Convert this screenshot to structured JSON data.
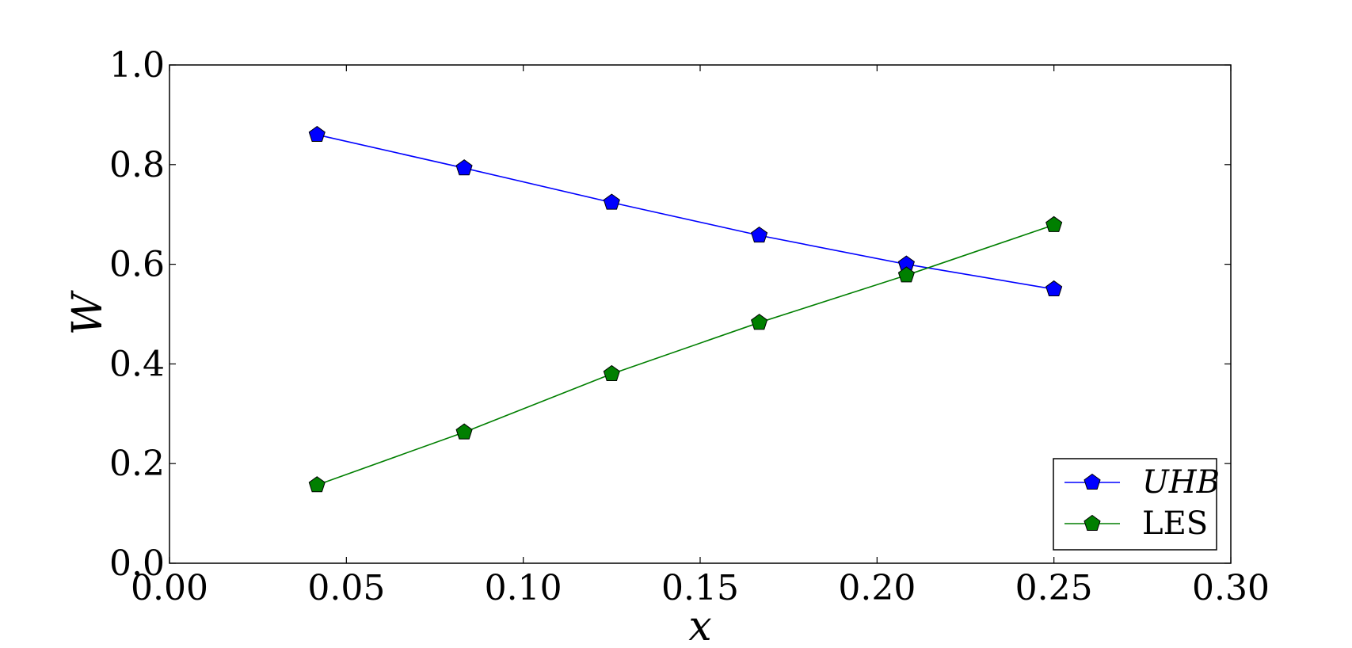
{
  "chart_data": {
    "type": "line",
    "title": "",
    "xlabel": "x",
    "ylabel": "W",
    "xlim": [
      0.0,
      0.3
    ],
    "ylim": [
      0.0,
      1.0
    ],
    "x_ticks": [
      "0.00",
      "0.05",
      "0.10",
      "0.15",
      "0.20",
      "0.25",
      "0.30"
    ],
    "y_ticks": [
      "0.0",
      "0.2",
      "0.4",
      "0.6",
      "0.8",
      "1.0"
    ],
    "grid": false,
    "legend_position": "bottom-right",
    "marker": "pentagon",
    "x": [
      0.0417,
      0.0833,
      0.125,
      0.1667,
      0.2083,
      0.25
    ],
    "series": [
      {
        "name": "UHB",
        "color": "#0000ff",
        "values": [
          0.86,
          0.793,
          0.724,
          0.658,
          0.6,
          0.55
        ]
      },
      {
        "name": "LES",
        "color": "#007f00",
        "values": [
          0.157,
          0.263,
          0.38,
          0.483,
          0.578,
          0.679
        ]
      }
    ]
  }
}
